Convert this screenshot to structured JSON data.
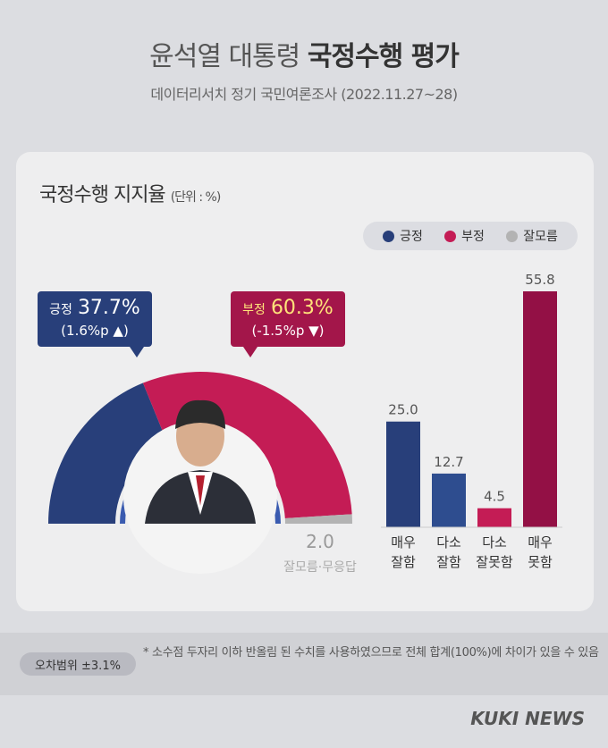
{
  "header": {
    "title_plain": "윤석열 대통령",
    "title_bold": "국정수행 평가",
    "subtitle": "데이터리서치 정기 국민여론조사 (2022.11.27~28)"
  },
  "card": {
    "title": "국정수행 지지율",
    "unit": "(단위 : %)"
  },
  "legend": [
    {
      "label": "긍정",
      "color": "#283f7a"
    },
    {
      "label": "부정",
      "color": "#c41c55"
    },
    {
      "label": "잘모름",
      "color": "#b3b3b3"
    }
  ],
  "callouts": {
    "positive": {
      "label": "긍정",
      "value": "37.7%",
      "change": "(1.6%p ▲)"
    },
    "negative": {
      "label": "부정",
      "value": "60.3%",
      "change": "(-1.5%p ▼)"
    },
    "dontknow": {
      "value": "2.0",
      "label": "잘모름·무응답"
    }
  },
  "chart_data": [
    {
      "type": "pie",
      "shape": "semi-donut",
      "categories": [
        "긍정",
        "부정",
        "잘모름·무응답"
      ],
      "values": [
        37.7,
        60.3,
        2.0
      ],
      "colors": [
        "#283f7a",
        "#c41c55",
        "#b3b3b3"
      ]
    },
    {
      "type": "bar",
      "categories": [
        "매우\n잘함",
        "다소\n잘함",
        "다소\n잘못함",
        "매우\n못함"
      ],
      "values": [
        25.0,
        12.7,
        4.5,
        55.8
      ],
      "value_labels": [
        "25.0",
        "12.7",
        "4.5",
        "55.8"
      ],
      "colors": [
        "#283f7a",
        "#2e4d8f",
        "#c41c55",
        "#931045"
      ]
    }
  ],
  "footer": {
    "margin_of_error": "오차범위 ±3.1%",
    "note": "* 소수점 두자리 이하 반올림 된 수치를 사용하였으므로 전체 합계(100%)에 차이가 있을 수 있음",
    "brand": "KUKI NEWS"
  }
}
